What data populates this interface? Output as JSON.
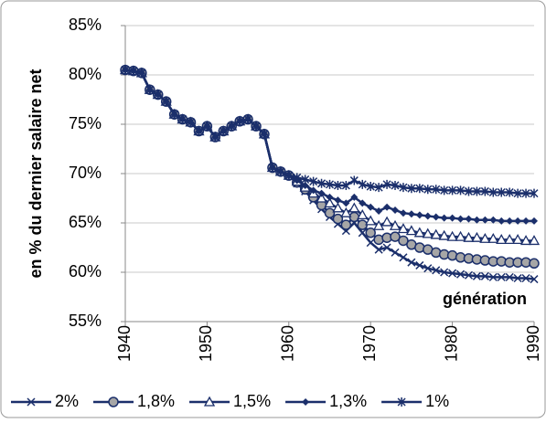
{
  "chart_data": {
    "type": "line",
    "y_axis_label": "en % du dernier salaire net",
    "annotation": "génération",
    "x": [
      1940,
      1941,
      1942,
      1943,
      1944,
      1945,
      1946,
      1947,
      1948,
      1949,
      1950,
      1951,
      1952,
      1953,
      1954,
      1955,
      1956,
      1957,
      1958,
      1959,
      1960,
      1961,
      1962,
      1963,
      1964,
      1965,
      1966,
      1967,
      1968,
      1969,
      1970,
      1971,
      1972,
      1973,
      1974,
      1975,
      1976,
      1977,
      1978,
      1979,
      1980,
      1981,
      1982,
      1983,
      1984,
      1985,
      1986,
      1987,
      1988,
      1989,
      1990
    ],
    "xlim": [
      1940,
      1990
    ],
    "xticks": [
      1940,
      1950,
      1960,
      1970,
      1980,
      1990
    ],
    "ylim": [
      55,
      85
    ],
    "yticks": [
      {
        "value": 55,
        "label": "55%"
      },
      {
        "value": 60,
        "label": "60%"
      },
      {
        "value": 65,
        "label": "65%"
      },
      {
        "value": 70,
        "label": "70%"
      },
      {
        "value": 75,
        "label": "75%"
      },
      {
        "value": 80,
        "label": "80%"
      },
      {
        "value": 85,
        "label": "85%"
      }
    ],
    "grid": true,
    "series": [
      {
        "name": "2%",
        "color": "#1b2f6b",
        "marker": "x",
        "values": [
          80.5,
          80.4,
          80.2,
          78.5,
          78.0,
          77.3,
          76.0,
          75.5,
          75.2,
          74.3,
          74.8,
          73.7,
          74.3,
          74.8,
          75.3,
          75.5,
          74.8,
          74.0,
          70.6,
          70.2,
          69.8,
          69.0,
          68.2,
          67.3,
          66.4,
          65.6,
          64.9,
          64.2,
          65.0,
          64.0,
          63.0,
          62.3,
          62.5,
          62.0,
          61.5,
          61.0,
          60.7,
          60.4,
          60.2,
          60.0,
          59.9,
          59.8,
          59.7,
          59.6,
          59.6,
          59.5,
          59.5,
          59.5,
          59.4,
          59.4,
          59.3
        ]
      },
      {
        "name": "1,8%",
        "color": "#1b2f6b",
        "marker": "circle",
        "values": [
          80.5,
          80.4,
          80.2,
          78.5,
          78.0,
          77.3,
          76.0,
          75.5,
          75.2,
          74.3,
          74.8,
          73.7,
          74.3,
          74.8,
          75.3,
          75.5,
          74.8,
          74.0,
          70.6,
          70.2,
          69.8,
          69.1,
          68.4,
          67.6,
          66.8,
          66.0,
          65.4,
          64.8,
          65.6,
          64.8,
          64.0,
          63.3,
          63.5,
          63.6,
          63.2,
          62.8,
          62.5,
          62.3,
          62.0,
          61.8,
          61.7,
          61.5,
          61.4,
          61.3,
          61.2,
          61.1,
          61.1,
          61.0,
          61.0,
          61.0,
          60.9
        ]
      },
      {
        "name": "1,5%",
        "color": "#1b2f6b",
        "marker": "triangle",
        "values": [
          80.5,
          80.4,
          80.2,
          78.5,
          78.0,
          77.3,
          76.0,
          75.5,
          75.2,
          74.3,
          74.8,
          73.7,
          74.3,
          74.8,
          75.3,
          75.5,
          74.8,
          74.0,
          70.6,
          70.2,
          69.8,
          69.2,
          68.6,
          68.0,
          67.5,
          67.0,
          66.5,
          66.0,
          66.5,
          65.8,
          65.2,
          64.7,
          65.1,
          64.7,
          64.4,
          64.2,
          64.0,
          63.9,
          63.8,
          63.7,
          63.6,
          63.6,
          63.5,
          63.5,
          63.4,
          63.4,
          63.3,
          63.3,
          63.3,
          63.2,
          63.2
        ]
      },
      {
        "name": "1,3%",
        "color": "#1b2f6b",
        "marker": "diamond",
        "values": [
          80.5,
          80.4,
          80.2,
          78.5,
          78.0,
          77.3,
          76.0,
          75.5,
          75.2,
          74.3,
          74.8,
          73.7,
          74.3,
          74.8,
          75.3,
          75.5,
          74.8,
          74.0,
          70.6,
          70.2,
          69.8,
          69.3,
          68.8,
          68.3,
          68.0,
          67.6,
          67.3,
          67.0,
          67.6,
          67.0,
          66.6,
          66.2,
          66.6,
          66.3,
          66.0,
          65.9,
          65.8,
          65.7,
          65.6,
          65.5,
          65.5,
          65.4,
          65.4,
          65.3,
          65.3,
          65.3,
          65.2,
          65.2,
          65.2,
          65.2,
          65.2
        ]
      },
      {
        "name": "1%",
        "color": "#1b2f6b",
        "marker": "star",
        "values": [
          80.5,
          80.4,
          80.2,
          78.5,
          78.0,
          77.3,
          76.0,
          75.5,
          75.2,
          74.3,
          74.8,
          73.7,
          74.3,
          74.8,
          75.3,
          75.5,
          74.8,
          74.0,
          70.6,
          70.2,
          69.8,
          69.6,
          69.4,
          69.2,
          69.0,
          68.9,
          68.8,
          68.8,
          69.3,
          68.9,
          68.7,
          68.6,
          68.9,
          68.8,
          68.6,
          68.5,
          68.5,
          68.4,
          68.4,
          68.3,
          68.3,
          68.3,
          68.2,
          68.2,
          68.2,
          68.1,
          68.1,
          68.1,
          68.0,
          68.0,
          68.0
        ]
      }
    ]
  }
}
